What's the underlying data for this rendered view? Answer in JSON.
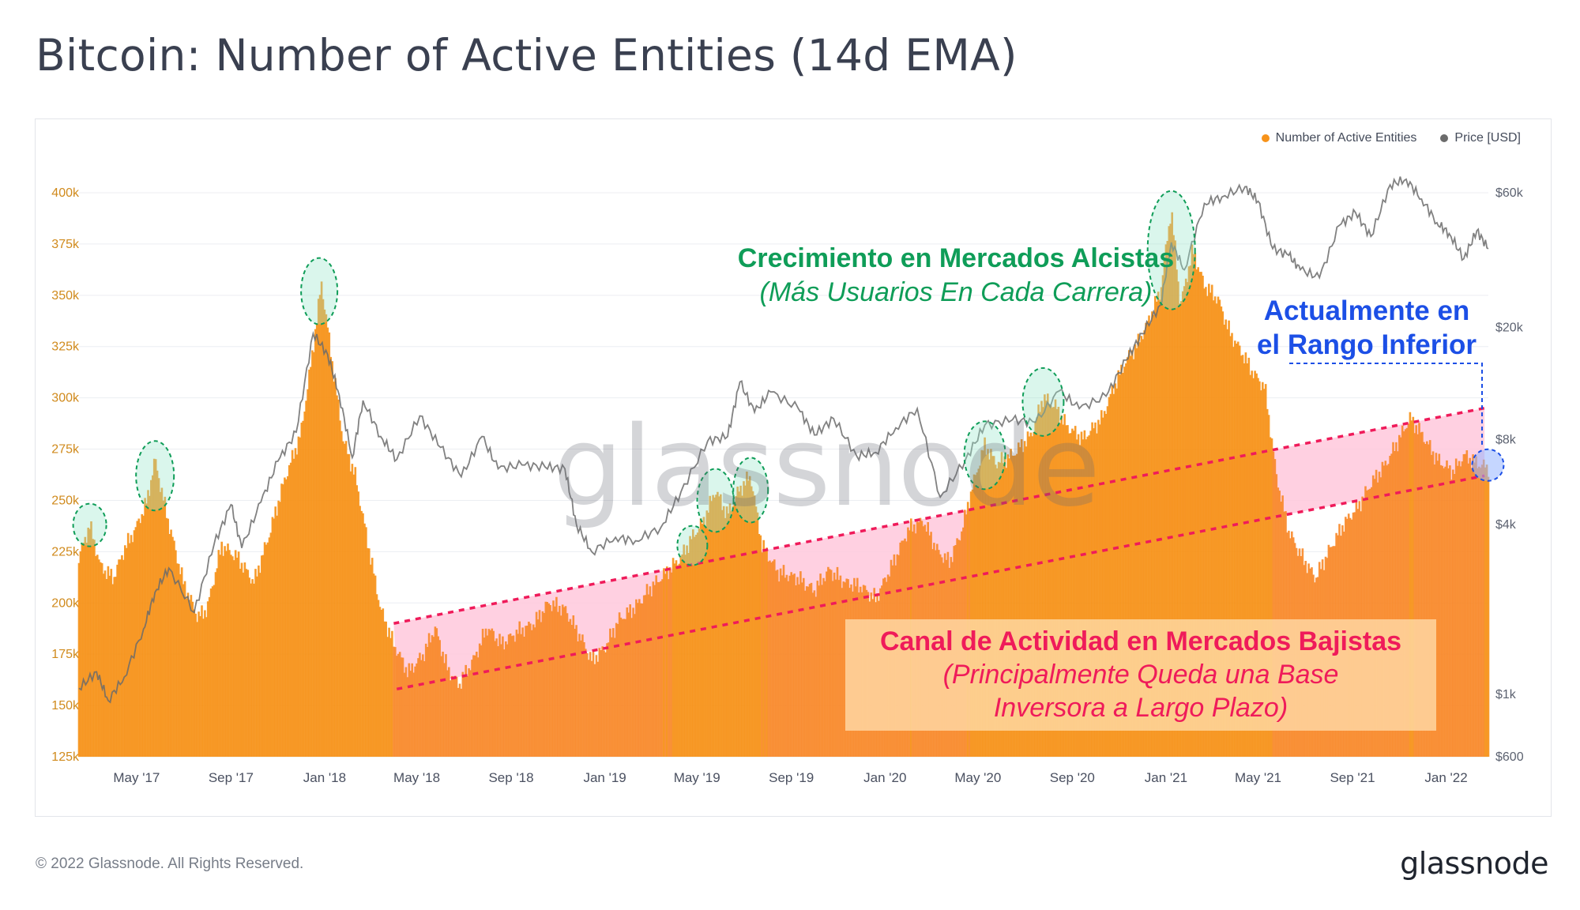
{
  "title": "Bitcoin: Number of Active Entities (14d EMA)",
  "legend": [
    {
      "label": "Number of Active Entities",
      "color": "#f7931a"
    },
    {
      "label": "Price [USD]",
      "color": "#6b6b6b"
    }
  ],
  "watermark": "glassnode",
  "footer": {
    "copyright": "© 2022 Glassnode. All Rights Reserved.",
    "logo": "glassnode"
  },
  "annotations": {
    "bull_title": "Crecimiento en Mercados Alcistas",
    "bull_subtitle": "(Más Usuarios En Cada Carrera)",
    "current_line1": "Actualmente en",
    "current_line2": "el Rango Inferior",
    "bear_title": "Canal de Actividad en Mercados Bajistas",
    "bear_sub1": "(Principalmente Queda una Base",
    "bear_sub2": "Inversora a Largo Plazo)"
  },
  "colors": {
    "bars": "#f7931a",
    "price": "#6b6b6b",
    "channel": "#ef1b5a",
    "channel_fill": "#ffc8dc",
    "bull": "#0f9d58",
    "current": "#1c4fe6"
  },
  "chart_data": {
    "type": "bar",
    "x_range": [
      "2017-02-15",
      "2022-02-25"
    ],
    "x_ticks": [
      {
        "label": "May '17",
        "date": "2017-05-01"
      },
      {
        "label": "Sep '17",
        "date": "2017-09-01"
      },
      {
        "label": "Jan '18",
        "date": "2018-01-01"
      },
      {
        "label": "May '18",
        "date": "2018-05-01"
      },
      {
        "label": "Sep '18",
        "date": "2018-09-01"
      },
      {
        "label": "Jan '19",
        "date": "2019-01-01"
      },
      {
        "label": "May '19",
        "date": "2019-05-01"
      },
      {
        "label": "Sep '19",
        "date": "2019-09-01"
      },
      {
        "label": "Jan '20",
        "date": "2020-01-01"
      },
      {
        "label": "May '20",
        "date": "2020-05-01"
      },
      {
        "label": "Sep '20",
        "date": "2020-09-01"
      },
      {
        "label": "Jan '21",
        "date": "2021-01-01"
      },
      {
        "label": "May '21",
        "date": "2021-05-01"
      },
      {
        "label": "Sep '21",
        "date": "2021-09-01"
      },
      {
        "label": "Jan '22",
        "date": "2022-01-01"
      }
    ],
    "y_left": {
      "min": 125000,
      "max": 400000,
      "ticks": [
        {
          "label": "400k",
          "value": 400000
        },
        {
          "label": "375k",
          "value": 375000
        },
        {
          "label": "350k",
          "value": 350000
        },
        {
          "label": "325k",
          "value": 325000
        },
        {
          "label": "300k",
          "value": 300000
        },
        {
          "label": "275k",
          "value": 275000
        },
        {
          "label": "250k",
          "value": 250000
        },
        {
          "label": "225k",
          "value": 225000
        },
        {
          "label": "200k",
          "value": 200000
        },
        {
          "label": "175k",
          "value": 175000
        },
        {
          "label": "150k",
          "value": 150000
        },
        {
          "label": "125k",
          "value": 125000
        }
      ]
    },
    "y_right": {
      "scale": "log",
      "min": 600,
      "max": 60000,
      "ticks": [
        {
          "label": "$60k",
          "value": 60000
        },
        {
          "label": "$20k",
          "value": 20000
        },
        {
          "label": "$8k",
          "value": 8000
        },
        {
          "label": "$4k",
          "value": 4000
        },
        {
          "label": "$1k",
          "value": 1000
        },
        {
          "label": "$600",
          "value": 600
        }
      ]
    },
    "series": [
      {
        "name": "Number of Active Entities",
        "axis": "left",
        "points": [
          [
            "2017-02-15",
            222000
          ],
          [
            "2017-03-01",
            238000
          ],
          [
            "2017-03-15",
            218000
          ],
          [
            "2017-04-01",
            212000
          ],
          [
            "2017-04-15",
            226000
          ],
          [
            "2017-05-01",
            237000
          ],
          [
            "2017-05-15",
            250000
          ],
          [
            "2017-05-25",
            270000
          ],
          [
            "2017-06-10",
            242000
          ],
          [
            "2017-07-01",
            210000
          ],
          [
            "2017-07-20",
            193000
          ],
          [
            "2017-08-01",
            197000
          ],
          [
            "2017-08-20",
            228000
          ],
          [
            "2017-09-10",
            222000
          ],
          [
            "2017-10-01",
            210000
          ],
          [
            "2017-10-20",
            232000
          ],
          [
            "2017-11-10",
            260000
          ],
          [
            "2017-12-01",
            282000
          ],
          [
            "2017-12-15",
            318000
          ],
          [
            "2017-12-28",
            356000
          ],
          [
            "2018-01-10",
            320000
          ],
          [
            "2018-01-25",
            280000
          ],
          [
            "2018-02-10",
            262000
          ],
          [
            "2018-02-25",
            232000
          ],
          [
            "2018-03-15",
            197000
          ],
          [
            "2018-04-01",
            180000
          ],
          [
            "2018-04-20",
            166000
          ],
          [
            "2018-05-10",
            175000
          ],
          [
            "2018-05-25",
            188000
          ],
          [
            "2018-06-10",
            168000
          ],
          [
            "2018-06-25",
            160000
          ],
          [
            "2018-07-15",
            173000
          ],
          [
            "2018-08-01",
            188000
          ],
          [
            "2018-08-20",
            180000
          ],
          [
            "2018-09-10",
            186000
          ],
          [
            "2018-10-01",
            190000
          ],
          [
            "2018-10-20",
            200000
          ],
          [
            "2018-11-10",
            197000
          ],
          [
            "2018-12-01",
            183000
          ],
          [
            "2018-12-15",
            172000
          ],
          [
            "2019-01-01",
            178000
          ],
          [
            "2019-01-20",
            192000
          ],
          [
            "2019-02-10",
            198000
          ],
          [
            "2019-03-01",
            207000
          ],
          [
            "2019-03-20",
            214000
          ],
          [
            "2019-04-10",
            222000
          ],
          [
            "2019-04-25",
            232000
          ],
          [
            "2019-05-10",
            240000
          ],
          [
            "2019-05-25",
            255000
          ],
          [
            "2019-06-10",
            243000
          ],
          [
            "2019-06-25",
            255000
          ],
          [
            "2019-07-10",
            262000
          ],
          [
            "2019-07-25",
            228000
          ],
          [
            "2019-08-15",
            215000
          ],
          [
            "2019-09-10",
            212000
          ],
          [
            "2019-10-01",
            206000
          ],
          [
            "2019-10-20",
            216000
          ],
          [
            "2019-11-10",
            210000
          ],
          [
            "2019-12-01",
            208000
          ],
          [
            "2019-12-20",
            202000
          ],
          [
            "2020-01-10",
            218000
          ],
          [
            "2020-02-01",
            236000
          ],
          [
            "2020-02-20",
            240000
          ],
          [
            "2020-03-10",
            225000
          ],
          [
            "2020-03-25",
            220000
          ],
          [
            "2020-04-10",
            235000
          ],
          [
            "2020-04-25",
            258000
          ],
          [
            "2020-05-10",
            277000
          ],
          [
            "2020-05-25",
            268000
          ],
          [
            "2020-06-15",
            272000
          ],
          [
            "2020-07-10",
            282000
          ],
          [
            "2020-07-25",
            300000
          ],
          [
            "2020-08-10",
            296000
          ],
          [
            "2020-08-25",
            286000
          ],
          [
            "2020-09-15",
            280000
          ],
          [
            "2020-10-10",
            290000
          ],
          [
            "2020-10-25",
            305000
          ],
          [
            "2020-11-10",
            318000
          ],
          [
            "2020-11-25",
            326000
          ],
          [
            "2020-12-10",
            338000
          ],
          [
            "2020-12-25",
            352000
          ],
          [
            "2021-01-08",
            392000
          ],
          [
            "2021-01-20",
            345000
          ],
          [
            "2021-02-05",
            372000
          ],
          [
            "2021-02-20",
            355000
          ],
          [
            "2021-03-10",
            348000
          ],
          [
            "2021-03-25",
            332000
          ],
          [
            "2021-04-10",
            322000
          ],
          [
            "2021-04-25",
            312000
          ],
          [
            "2021-05-10",
            305000
          ],
          [
            "2021-05-25",
            262000
          ],
          [
            "2021-06-10",
            235000
          ],
          [
            "2021-06-25",
            224000
          ],
          [
            "2021-07-15",
            212000
          ],
          [
            "2021-08-01",
            225000
          ],
          [
            "2021-08-20",
            238000
          ],
          [
            "2021-09-10",
            248000
          ],
          [
            "2021-09-25",
            258000
          ],
          [
            "2021-10-15",
            268000
          ],
          [
            "2021-11-01",
            280000
          ],
          [
            "2021-11-15",
            290000
          ],
          [
            "2021-12-01",
            282000
          ],
          [
            "2021-12-20",
            270000
          ],
          [
            "2022-01-10",
            264000
          ],
          [
            "2022-01-25",
            272000
          ],
          [
            "2022-02-10",
            268000
          ],
          [
            "2022-02-25",
            266000
          ]
        ]
      },
      {
        "name": "Price [USD]",
        "axis": "right",
        "points": [
          [
            "2017-02-15",
            1050
          ],
          [
            "2017-03-10",
            1200
          ],
          [
            "2017-03-25",
            950
          ],
          [
            "2017-04-15",
            1150
          ],
          [
            "2017-05-10",
            1700
          ],
          [
            "2017-05-25",
            2300
          ],
          [
            "2017-06-12",
            2800
          ],
          [
            "2017-07-15",
            1950
          ],
          [
            "2017-08-10",
            3400
          ],
          [
            "2017-09-01",
            4700
          ],
          [
            "2017-09-15",
            3300
          ],
          [
            "2017-10-10",
            4800
          ],
          [
            "2017-11-01",
            6700
          ],
          [
            "2017-11-25",
            8500
          ],
          [
            "2017-12-17",
            19000
          ],
          [
            "2018-01-05",
            16000
          ],
          [
            "2018-01-20",
            11500
          ],
          [
            "2018-02-06",
            6900
          ],
          [
            "2018-02-20",
            11000
          ],
          [
            "2018-03-15",
            8200
          ],
          [
            "2018-04-05",
            6800
          ],
          [
            "2018-05-05",
            9700
          ],
          [
            "2018-06-01",
            7500
          ],
          [
            "2018-06-28",
            5900
          ],
          [
            "2018-07-25",
            8200
          ],
          [
            "2018-08-15",
            6300
          ],
          [
            "2018-09-15",
            6500
          ],
          [
            "2018-10-15",
            6400
          ],
          [
            "2018-11-10",
            6300
          ],
          [
            "2018-11-25",
            4000
          ],
          [
            "2018-12-15",
            3200
          ],
          [
            "2019-01-15",
            3600
          ],
          [
            "2019-02-10",
            3500
          ],
          [
            "2019-03-15",
            3900
          ],
          [
            "2019-04-10",
            5200
          ],
          [
            "2019-05-15",
            7900
          ],
          [
            "2019-06-10",
            8200
          ],
          [
            "2019-06-26",
            12800
          ],
          [
            "2019-07-15",
            10000
          ],
          [
            "2019-08-05",
            11800
          ],
          [
            "2019-09-10",
            10300
          ],
          [
            "2019-10-01",
            8300
          ],
          [
            "2019-10-26",
            9500
          ],
          [
            "2019-11-25",
            7000
          ],
          [
            "2019-12-20",
            7200
          ],
          [
            "2020-01-15",
            8800
          ],
          [
            "2020-02-12",
            10300
          ],
          [
            "2020-03-13",
            5000
          ],
          [
            "2020-04-15",
            6800
          ],
          [
            "2020-05-10",
            9000
          ],
          [
            "2020-06-15",
            9400
          ],
          [
            "2020-07-15",
            9200
          ],
          [
            "2020-08-15",
            11900
          ],
          [
            "2020-09-10",
            10300
          ],
          [
            "2020-10-15",
            11400
          ],
          [
            "2020-11-10",
            15300
          ],
          [
            "2020-12-01",
            19000
          ],
          [
            "2020-12-25",
            24000
          ],
          [
            "2021-01-08",
            40000
          ],
          [
            "2021-01-25",
            32000
          ],
          [
            "2021-02-20",
            55000
          ],
          [
            "2021-03-15",
            58000
          ],
          [
            "2021-04-14",
            63000
          ],
          [
            "2021-05-01",
            56000
          ],
          [
            "2021-05-20",
            38000
          ],
          [
            "2021-06-10",
            36000
          ],
          [
            "2021-06-25",
            32000
          ],
          [
            "2021-07-20",
            30000
          ],
          [
            "2021-08-15",
            46000
          ],
          [
            "2021-09-05",
            51000
          ],
          [
            "2021-09-25",
            42000
          ],
          [
            "2021-10-20",
            64000
          ],
          [
            "2021-11-10",
            67000
          ],
          [
            "2021-11-30",
            57000
          ],
          [
            "2021-12-20",
            47000
          ],
          [
            "2022-01-05",
            43000
          ],
          [
            "2022-01-24",
            35000
          ],
          [
            "2022-02-10",
            44000
          ],
          [
            "2022-02-25",
            38000
          ]
        ]
      }
    ],
    "bear_channel": {
      "upper": [
        [
          "2018-04-01",
          190000
        ],
        [
          "2022-02-20",
          295000
        ]
      ],
      "lower": [
        [
          "2018-04-05",
          158000
        ],
        [
          "2022-02-20",
          262000
        ]
      ]
    },
    "bull_peak_markers": [
      {
        "date": "2017-03-01",
        "value": 238000
      },
      {
        "date": "2017-05-25",
        "value": 262000
      },
      {
        "date": "2017-12-25",
        "value": 352000
      },
      {
        "date": "2019-04-25",
        "value": 228000
      },
      {
        "date": "2019-05-25",
        "value": 250000
      },
      {
        "date": "2019-07-10",
        "value": 255000
      },
      {
        "date": "2020-05-10",
        "value": 272000
      },
      {
        "date": "2020-07-25",
        "value": 298000
      },
      {
        "date": "2021-01-08",
        "value": 372000
      }
    ],
    "current_marker": {
      "date": "2022-02-10",
      "value": 268000
    }
  }
}
